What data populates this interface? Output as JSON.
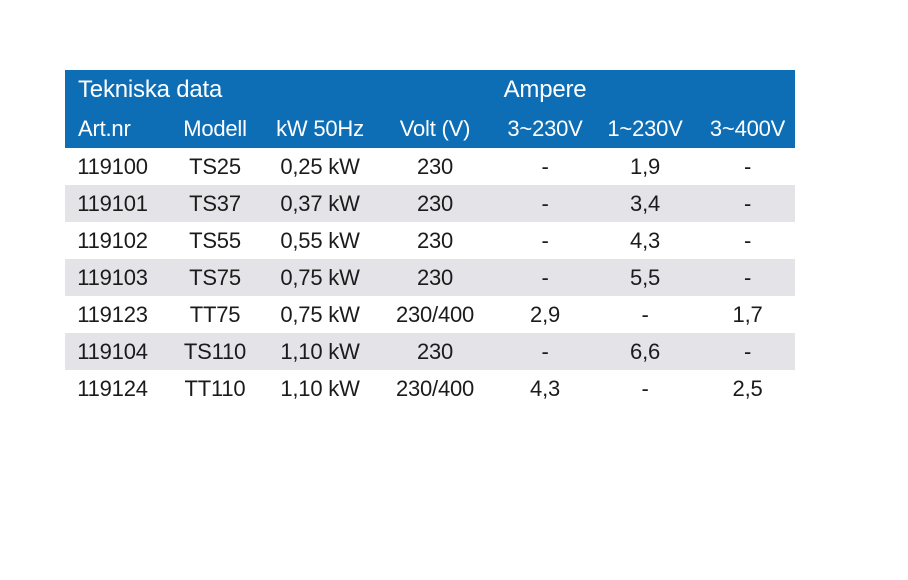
{
  "colors": {
    "header-bg": "#0e6eb5",
    "stripe": "#e4e3e8",
    "text": "#1b1b1b",
    "header-text": "#ffffff",
    "page-bg": "#ffffff"
  },
  "table": {
    "title": "Tekniska data",
    "group_label": "Ampere",
    "columns": [
      "Art.nr",
      "Modell",
      "kW 50Hz",
      "Volt (V)",
      "3~230V",
      "1~230V",
      "3~400V"
    ],
    "rows": [
      [
        "119100",
        "TS25",
        "0,25 kW",
        "230",
        "-",
        "1,9",
        "-"
      ],
      [
        "119101",
        "TS37",
        "0,37 kW",
        "230",
        "-",
        "3,4",
        "-"
      ],
      [
        "119102",
        "TS55",
        "0,55 kW",
        "230",
        "-",
        "4,3",
        "-"
      ],
      [
        "119103",
        "TS75",
        "0,75 kW",
        "230",
        "-",
        "5,5",
        "-"
      ],
      [
        "119123",
        "TT75",
        "0,75 kW",
        "230/400",
        "2,9",
        "-",
        "1,7"
      ],
      [
        "119104",
        "TS110",
        "1,10 kW",
        "230",
        "-",
        "6,6",
        "-"
      ],
      [
        "119124",
        "TT110",
        "1,10 kW",
        "230/400",
        "4,3",
        "-",
        "2,5"
      ]
    ]
  }
}
